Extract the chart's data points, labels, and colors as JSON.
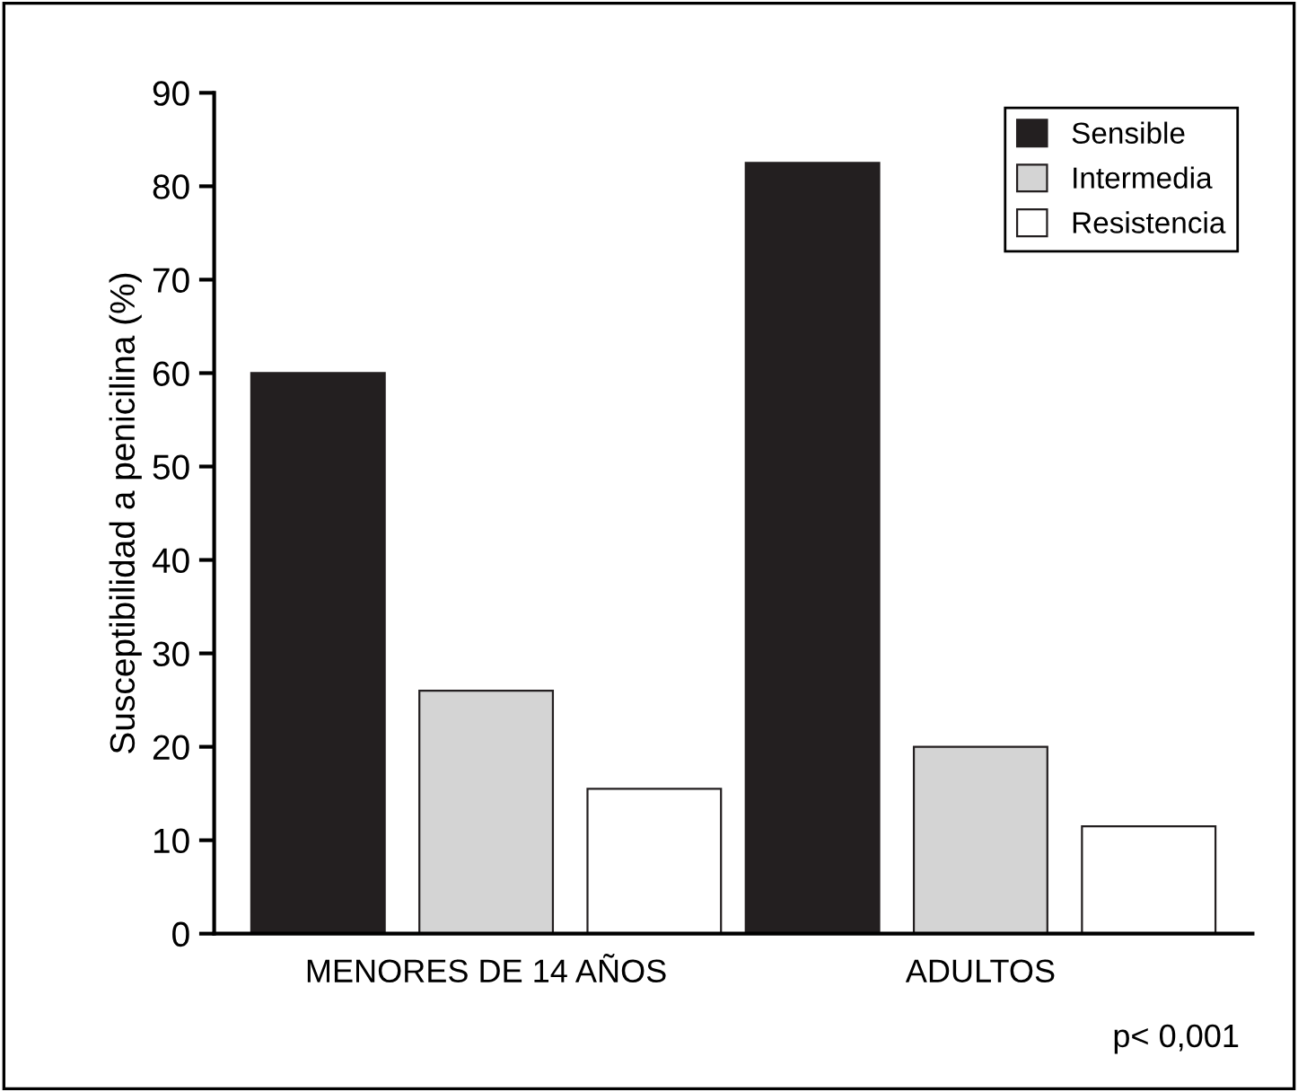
{
  "chart_data": {
    "type": "bar",
    "ylabel": "Susceptibilidad a penicilina (%)",
    "categories": [
      "MENORES DE 14 AÑOS",
      "ADULTOS"
    ],
    "series": [
      {
        "name": "Sensible",
        "color": "#231f20",
        "values": [
          60,
          82.5
        ]
      },
      {
        "name": "Intermedia",
        "color": "#d4d4d4",
        "values": [
          26,
          20
        ]
      },
      {
        "name": "Resistencia",
        "color": "#ffffff",
        "values": [
          15.5,
          11.5
        ]
      }
    ],
    "ylim": [
      0,
      90
    ],
    "yticks": [
      0,
      10,
      20,
      30,
      40,
      50,
      60,
      70,
      80,
      90
    ],
    "grid": false,
    "legend": "top right",
    "annotations": [
      "p< 0,001"
    ]
  }
}
